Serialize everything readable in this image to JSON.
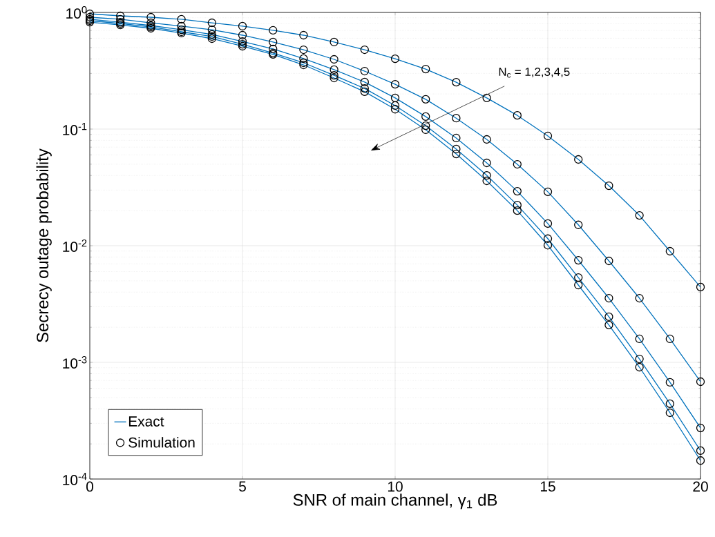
{
  "chart_data": {
    "type": "line",
    "xlabel": "SNR of main channel, γ$_{1}$ dB",
    "ylabel": "Secrecy outage probability",
    "annotations": [
      "N$_{c}$ = 1,2,3,4,5"
    ],
    "x": [
      0,
      1,
      2,
      3,
      4,
      5,
      6,
      7,
      8,
      9,
      10,
      11,
      12,
      13,
      14,
      15,
      16,
      17,
      18,
      19,
      20
    ],
    "xlim": [
      0,
      20
    ],
    "xticks": [
      0,
      5,
      10,
      15,
      20
    ],
    "log": "y",
    "ylim": [
      0.0001,
      1
    ],
    "yticks": [
      {
        "value": 0.0001,
        "label": "10$^{-4}$"
      },
      {
        "value": 0.001,
        "label": "10$^{-3}$"
      },
      {
        "value": 0.01,
        "label": "10$^{-2}$"
      },
      {
        "value": 0.1,
        "label": "10$^{-1}$"
      },
      {
        "value": 1,
        "label": "10$^{0}$"
      }
    ],
    "grid": true,
    "legend": "bottom left",
    "series": [
      {
        "name": "Exact",
        "marker": "none",
        "color": "#0072bd",
        "values": [
          0.973,
          0.934,
          0.909,
          0.873,
          0.815,
          0.762,
          0.702,
          0.638,
          0.557,
          0.479,
          0.401,
          0.327,
          0.252,
          0.185,
          0.131,
          0.0873,
          0.0549,
          0.0327,
          0.0182,
          0.00897,
          0.00442
        ]
      },
      {
        "marker": "none",
        "color": "#0072bd",
        "values": [
          0.909,
          0.873,
          0.815,
          0.762,
          0.711,
          0.638,
          0.557,
          0.479,
          0.396,
          0.314,
          0.242,
          0.18,
          0.124,
          0.0815,
          0.0499,
          0.029,
          0.0151,
          0.00741,
          0.00355,
          0.00159,
          0.000683
        ]
      },
      {
        "marker": "none",
        "color": "#0072bd",
        "values": [
          0.873,
          0.826,
          0.772,
          0.711,
          0.647,
          0.564,
          0.486,
          0.402,
          0.323,
          0.253,
          0.185,
          0.128,
          0.0838,
          0.0513,
          0.0293,
          0.0155,
          0.00751,
          0.00355,
          0.00159,
          0.000674,
          0.000274
        ]
      },
      {
        "marker": "none",
        "color": "#0072bd",
        "values": [
          0.849,
          0.804,
          0.751,
          0.683,
          0.621,
          0.534,
          0.448,
          0.37,
          0.289,
          0.223,
          0.159,
          0.107,
          0.0674,
          0.0401,
          0.0223,
          0.0115,
          0.00534,
          0.00246,
          0.00107,
          0.000442,
          0.000175
        ]
      },
      {
        "marker": "none",
        "color": "#0072bd",
        "values": [
          0.826,
          0.782,
          0.731,
          0.665,
          0.596,
          0.513,
          0.436,
          0.355,
          0.274,
          0.209,
          0.148,
          0.0987,
          0.0612,
          0.036,
          0.02,
          0.0101,
          0.0046,
          0.00209,
          0.000909,
          0.00037,
          0.000144
        ]
      },
      {
        "name": "Simulation",
        "type": "scatter",
        "marker": "circle",
        "color": "#000000",
        "values": [
          0.973,
          0.934,
          0.909,
          0.873,
          0.815,
          0.762,
          0.702,
          0.638,
          0.557,
          0.479,
          0.401,
          0.327,
          0.252,
          0.185,
          0.131,
          0.0873,
          0.0549,
          0.0327,
          0.0182,
          0.00897,
          0.00442
        ]
      },
      {
        "type": "scatter",
        "marker": "circle",
        "color": "#000000",
        "values": [
          0.909,
          0.873,
          0.815,
          0.762,
          0.711,
          0.638,
          0.557,
          0.479,
          0.396,
          0.314,
          0.242,
          0.18,
          0.124,
          0.0815,
          0.0499,
          0.029,
          0.0151,
          0.00741,
          0.00355,
          0.00159,
          0.000683
        ]
      },
      {
        "type": "scatter",
        "marker": "circle",
        "color": "#000000",
        "values": [
          0.873,
          0.826,
          0.772,
          0.711,
          0.647,
          0.564,
          0.486,
          0.402,
          0.323,
          0.253,
          0.185,
          0.128,
          0.0838,
          0.0513,
          0.0293,
          0.0155,
          0.00751,
          0.00355,
          0.00159,
          0.000674,
          0.000274
        ]
      },
      {
        "type": "scatter",
        "marker": "circle",
        "color": "#000000",
        "values": [
          0.849,
          0.804,
          0.751,
          0.683,
          0.621,
          0.534,
          0.448,
          0.37,
          0.289,
          0.223,
          0.159,
          0.107,
          0.0674,
          0.0401,
          0.0223,
          0.0115,
          0.00534,
          0.00246,
          0.00107,
          0.000442,
          0.000175
        ]
      },
      {
        "type": "scatter",
        "marker": "circle",
        "color": "#000000",
        "values": [
          0.826,
          0.782,
          0.731,
          0.665,
          0.596,
          0.513,
          0.436,
          0.355,
          0.274,
          0.209,
          0.148,
          0.0987,
          0.0612,
          0.036,
          0.02,
          0.0101,
          0.0046,
          0.00209,
          0.000909,
          0.00037,
          0.000144
        ]
      }
    ]
  }
}
